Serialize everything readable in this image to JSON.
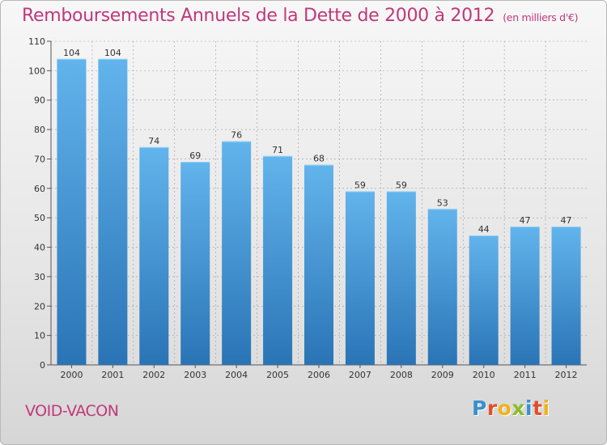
{
  "header": {
    "title": "Remboursements Annuels de la Dette de 2000 à 2012",
    "subtitle": "(en milliers d'€)"
  },
  "footer": {
    "town": "VOID-VACON",
    "logo": {
      "letters": [
        {
          "char": "P",
          "color": "#3a8fd0"
        },
        {
          "char": "r",
          "color": "#e24e2c"
        },
        {
          "char": "o",
          "color": "#f0b21b"
        },
        {
          "char": "x",
          "color": "#8bbd2a"
        },
        {
          "char": "i",
          "color": "#3a8fd0"
        },
        {
          "char": "t",
          "color": "#e24e2c"
        },
        {
          "char": "i",
          "color": "#f0b21b"
        }
      ]
    }
  },
  "colors": {
    "bar_top": "#62b4ec",
    "bar_bottom": "#2a74b6",
    "title": "#c0387a",
    "grid": "#9a9a9a"
  },
  "chart_data": {
    "type": "bar",
    "title": "Remboursements Annuels de la Dette de 2000 à 2012",
    "subtitle": "(en milliers d'€)",
    "categories": [
      "2000",
      "2001",
      "2002",
      "2003",
      "2004",
      "2005",
      "2006",
      "2007",
      "2008",
      "2009",
      "2010",
      "2011",
      "2012"
    ],
    "values": [
      104,
      104,
      74,
      69,
      76,
      71,
      68,
      59,
      59,
      53,
      44,
      47,
      47
    ],
    "ylim": [
      0,
      110
    ],
    "yticks": [
      0,
      10,
      20,
      30,
      40,
      50,
      60,
      70,
      80,
      90,
      100,
      110
    ],
    "grid": true,
    "data_labels": true
  }
}
